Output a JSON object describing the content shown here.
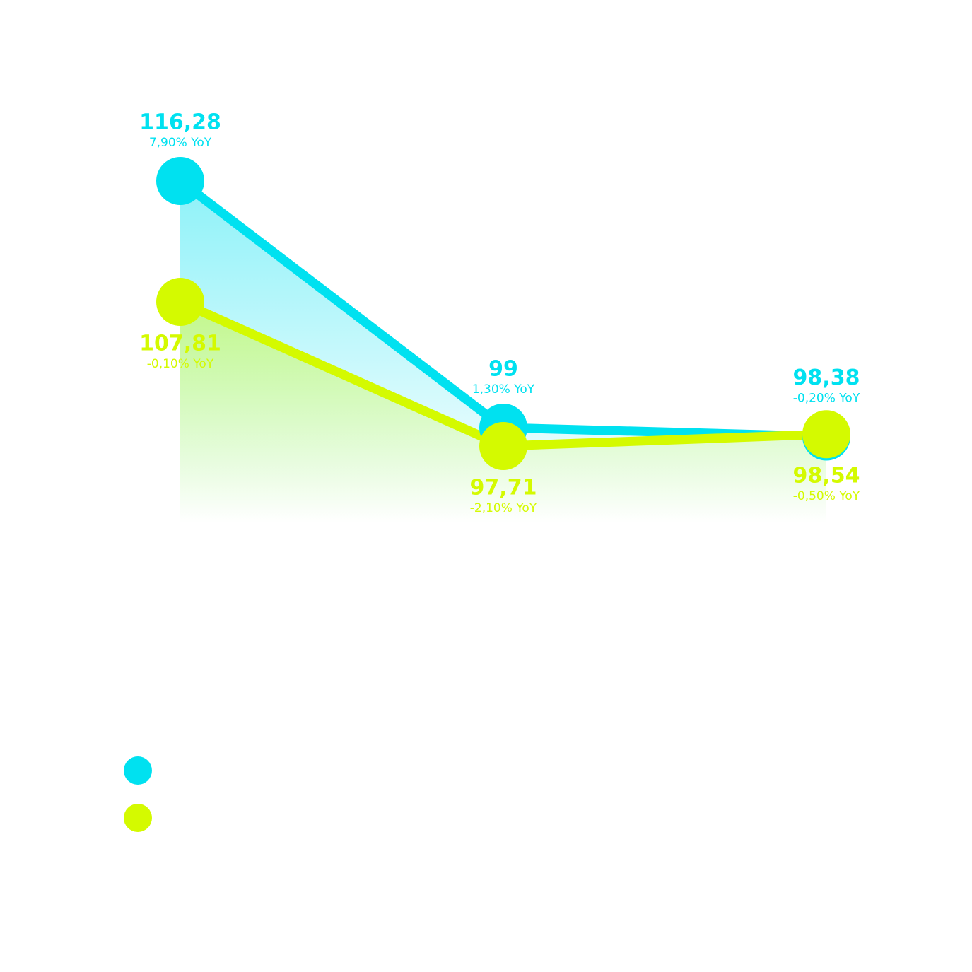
{
  "chart_data": {
    "type": "line",
    "categories": [
      null,
      null,
      null
    ],
    "series": [
      {
        "color": "#00e1f0",
        "values": [
          116.28,
          99,
          98.38
        ],
        "value_labels": [
          "116,28",
          "99",
          "98,38"
        ],
        "annotations": [
          "7,90% YoY",
          "1,30% YoY",
          "-0,20% YoY"
        ]
      },
      {
        "color": "#d4fa00",
        "values": [
          107.81,
          97.71,
          98.54
        ],
        "value_labels": [
          "107,81",
          "97,71",
          "98,54"
        ],
        "annotations": [
          "-0,10% YoY",
          "-2,10% YoY",
          "-0,50% YoY"
        ]
      }
    ],
    "legend": "bottom-left"
  }
}
